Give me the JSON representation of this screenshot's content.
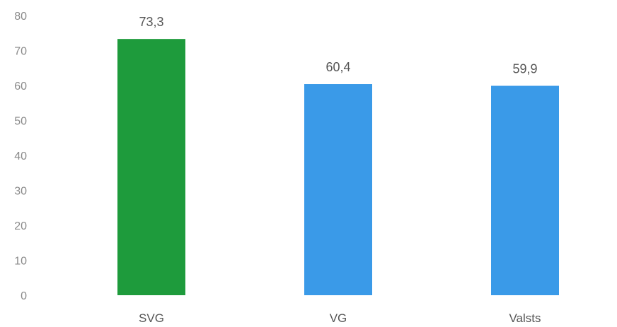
{
  "chart_data": {
    "type": "bar",
    "categories": [
      "SVG",
      "VG",
      "Valsts"
    ],
    "values": [
      73.3,
      60.4,
      59.9
    ],
    "value_labels": [
      "73,3",
      "60,4",
      "59,9"
    ],
    "bar_colors": [
      "#1e9b3c",
      "#3a9ae8",
      "#3a9ae8"
    ],
    "ylim": [
      0,
      80
    ],
    "y_ticks": [
      0,
      10,
      20,
      30,
      40,
      50,
      60,
      70,
      80
    ],
    "grid": false,
    "title": "",
    "xlabel": "",
    "ylabel": ""
  }
}
